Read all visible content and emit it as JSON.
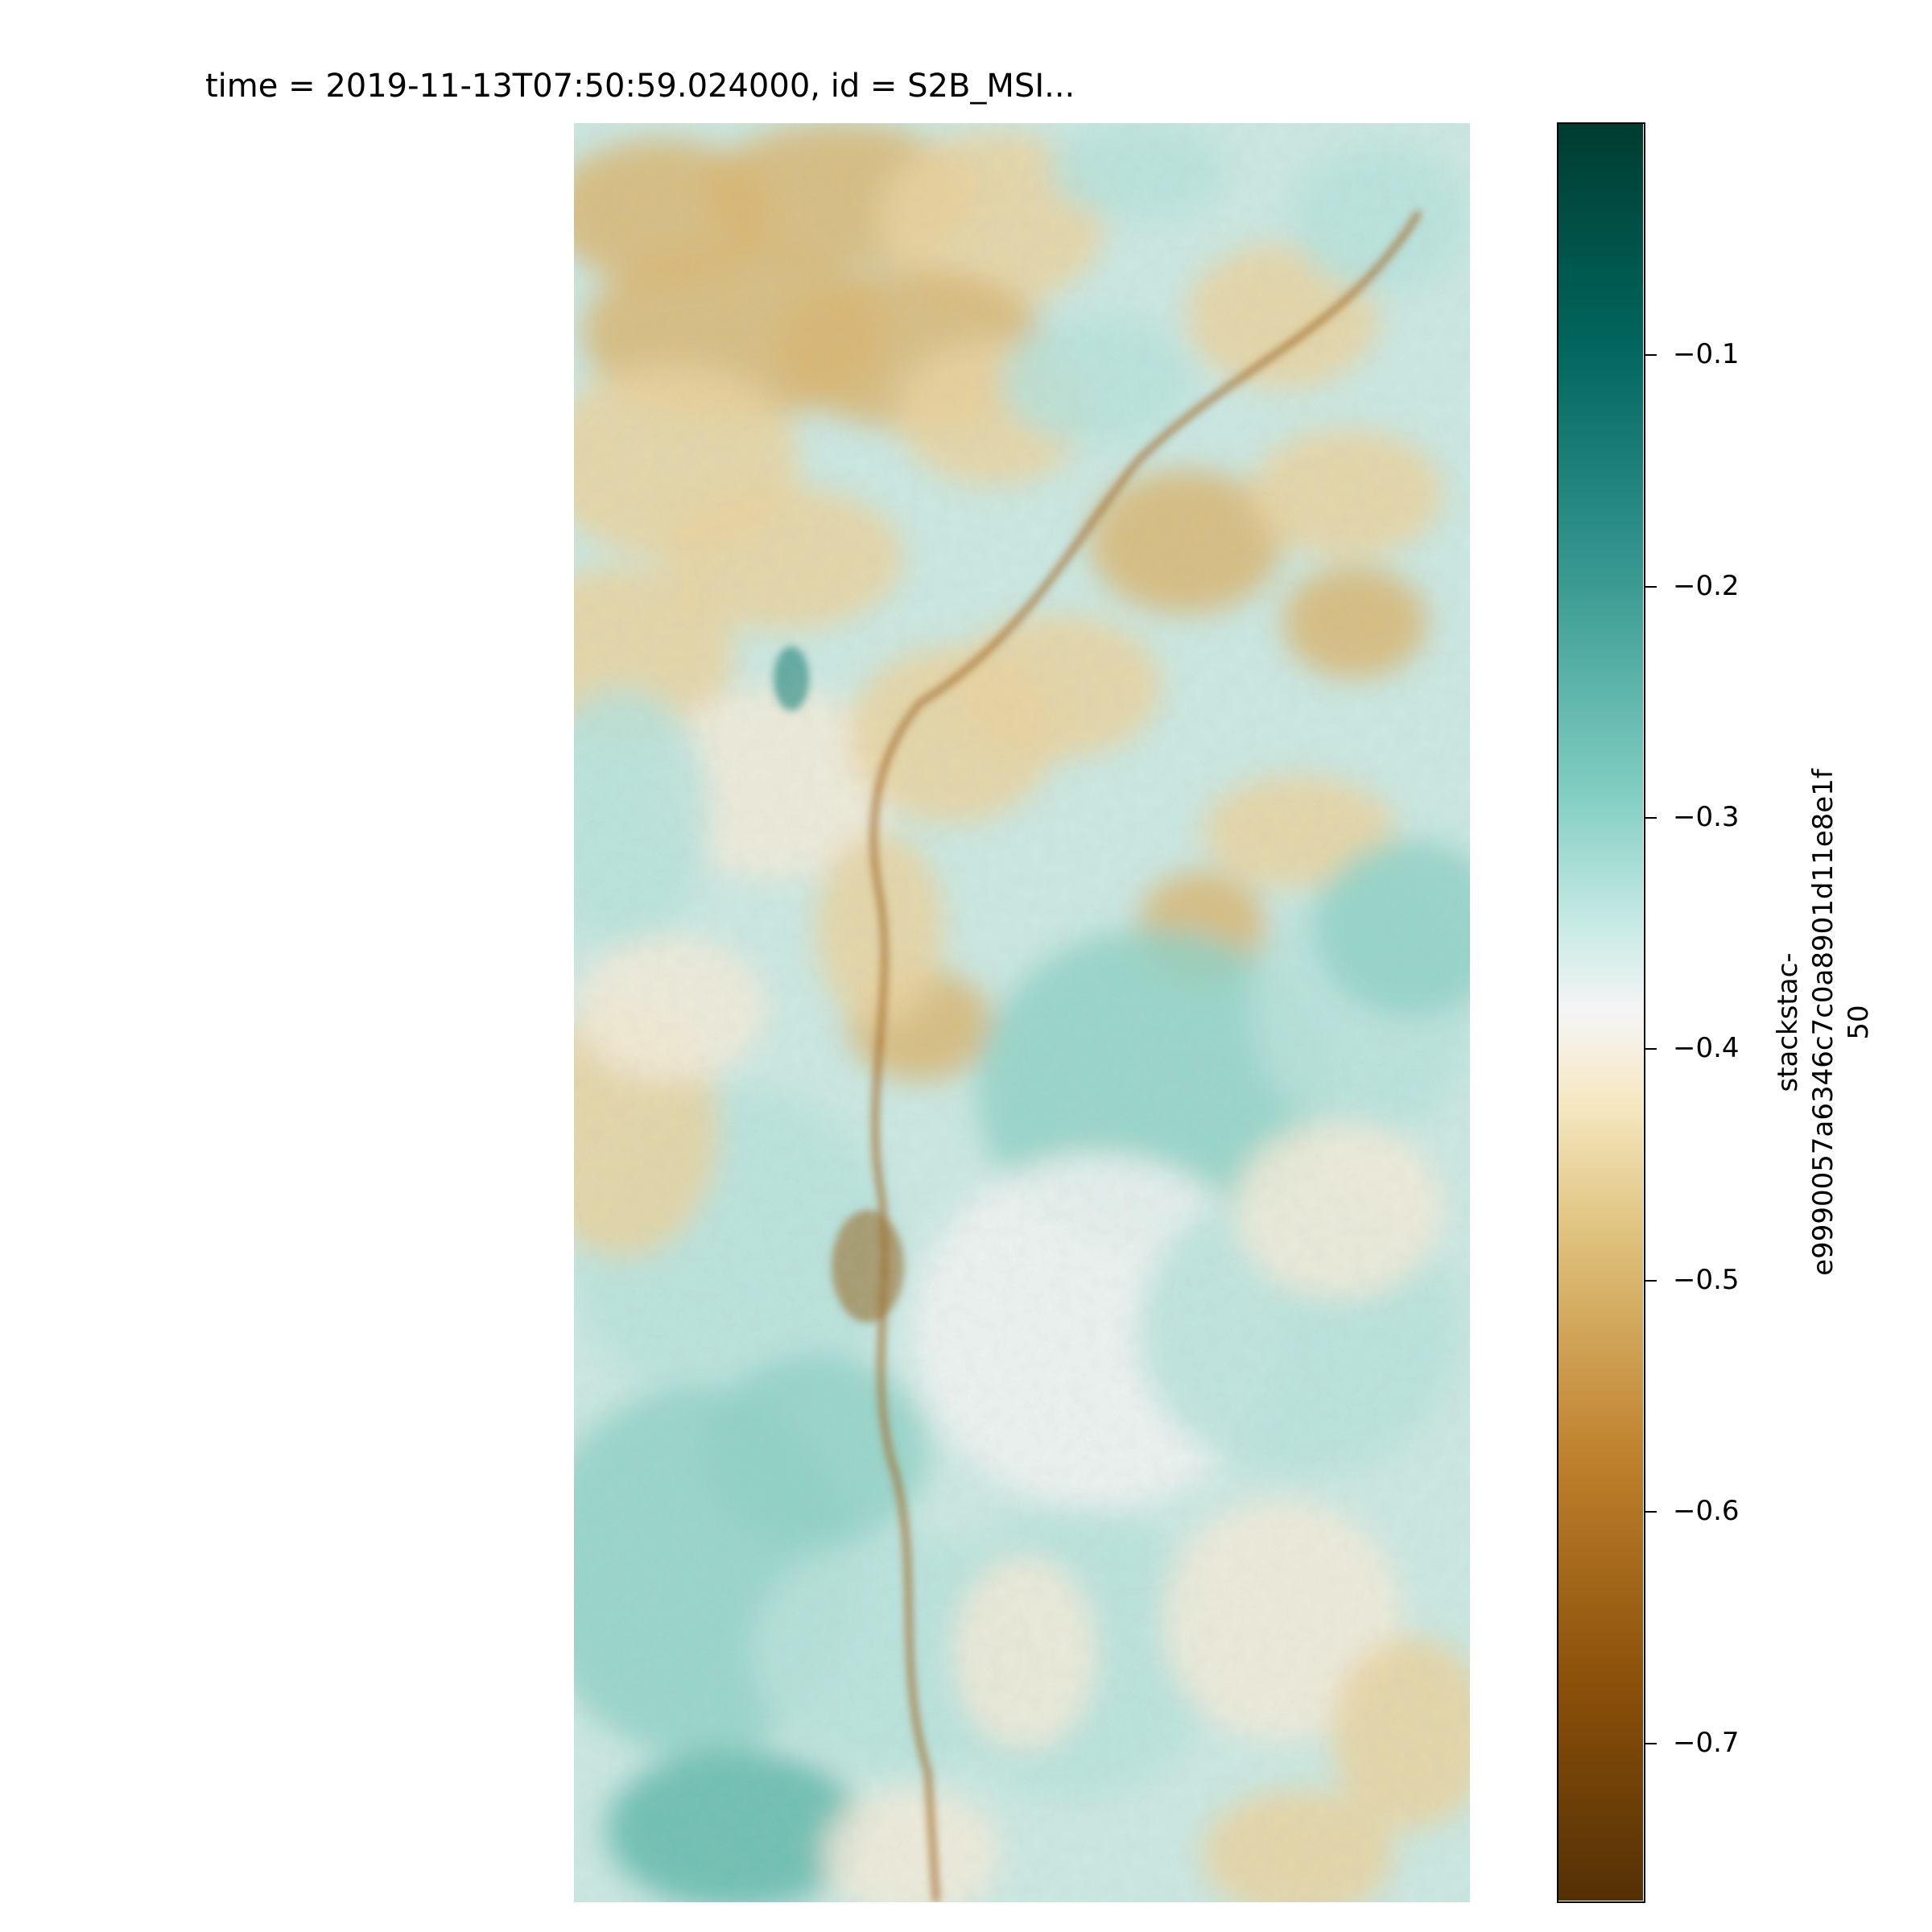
{
  "title": "time = 2019-11-13T07:50:59.024000, id = S2B_MSI...",
  "chart_data": {
    "type": "heatmap",
    "title": "time = 2019-11-13T07:50:59.024000, id = S2B_MSI...",
    "colormap": "BrBG",
    "colorbar": {
      "label_lines": [
        "stackstac-",
        "e9990057a6346c7c0a8901d11e8e1f",
        "50"
      ],
      "vmin": -0.768,
      "vmax": -0.0,
      "ticks": [
        -0.1,
        -0.2,
        -0.3,
        -0.4,
        -0.5,
        -0.6,
        -0.7
      ],
      "tick_labels": [
        "−0.1",
        "−0.2",
        "−0.3",
        "−0.4",
        "−0.5",
        "−0.6",
        "−0.7"
      ]
    },
    "colors": {
      "low": "#543005",
      "mid_low": "#dfc27d",
      "center": "#f5f5f5",
      "mid_high": "#80cdc1",
      "high": "#003c30"
    },
    "axes_visible": false
  }
}
